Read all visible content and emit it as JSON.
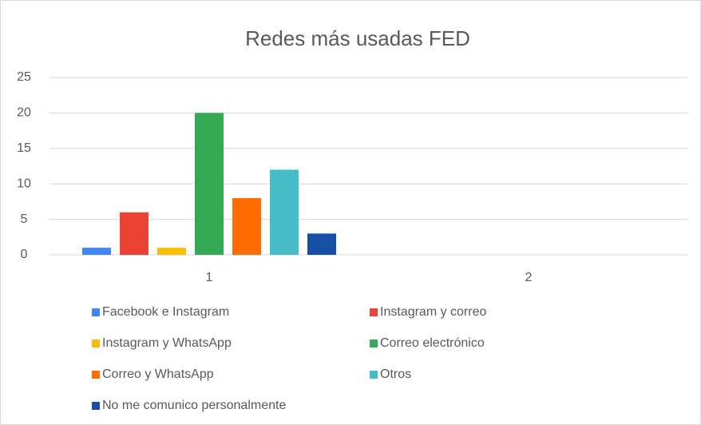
{
  "chart_data": {
    "type": "bar",
    "title": "Redes más usadas FED",
    "categories": [
      "1",
      "2"
    ],
    "series": [
      {
        "name": "Facebook e Instagram",
        "color": "#4285f4",
        "values": [
          1,
          null
        ]
      },
      {
        "name": "Instagram y correo",
        "color": "#ea4335",
        "values": [
          6,
          null
        ]
      },
      {
        "name": "Instagram y WhatsApp",
        "color": "#fbbc04",
        "values": [
          1,
          null
        ]
      },
      {
        "name": "Correo electrónico",
        "color": "#34a853",
        "values": [
          20,
          null
        ]
      },
      {
        "name": "Correo y WhatsApp",
        "color": "#ff6d01",
        "values": [
          8,
          null
        ]
      },
      {
        "name": "Otros",
        "color": "#46bdc6",
        "values": [
          12,
          null
        ]
      },
      {
        "name": "No me comunico personalmente",
        "color": "#174ea6",
        "values": [
          3,
          null
        ]
      }
    ],
    "ylim": [
      0,
      25
    ],
    "yticks": [
      0,
      5,
      10,
      15,
      20,
      25
    ],
    "grid": true,
    "legend": "bottom"
  }
}
